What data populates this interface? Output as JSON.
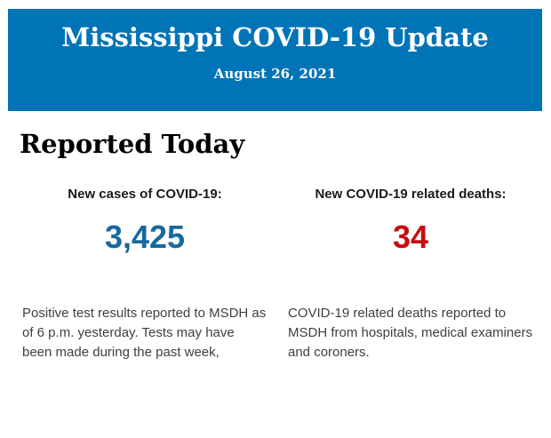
{
  "header": {
    "title": "Mississippi COVID-19 Update",
    "date": "August 26, 2021",
    "background_color": "#0074b7",
    "text_color": "#ffffff"
  },
  "main": {
    "heading": "Reported Today",
    "stats": [
      {
        "label": "New cases of COVID-19:",
        "value": "3,425",
        "value_color": "#17699e",
        "description": "Positive test results reported to MSDH as of 6 p.m. yesterday. Tests may have been made during the past week,"
      },
      {
        "label": "New COVID-19 related deaths:",
        "value": "34",
        "value_color": "#c70d11",
        "description": "COVID-19 related deaths reported to MSDH from hospitals, medical examiners and coroners."
      }
    ]
  }
}
